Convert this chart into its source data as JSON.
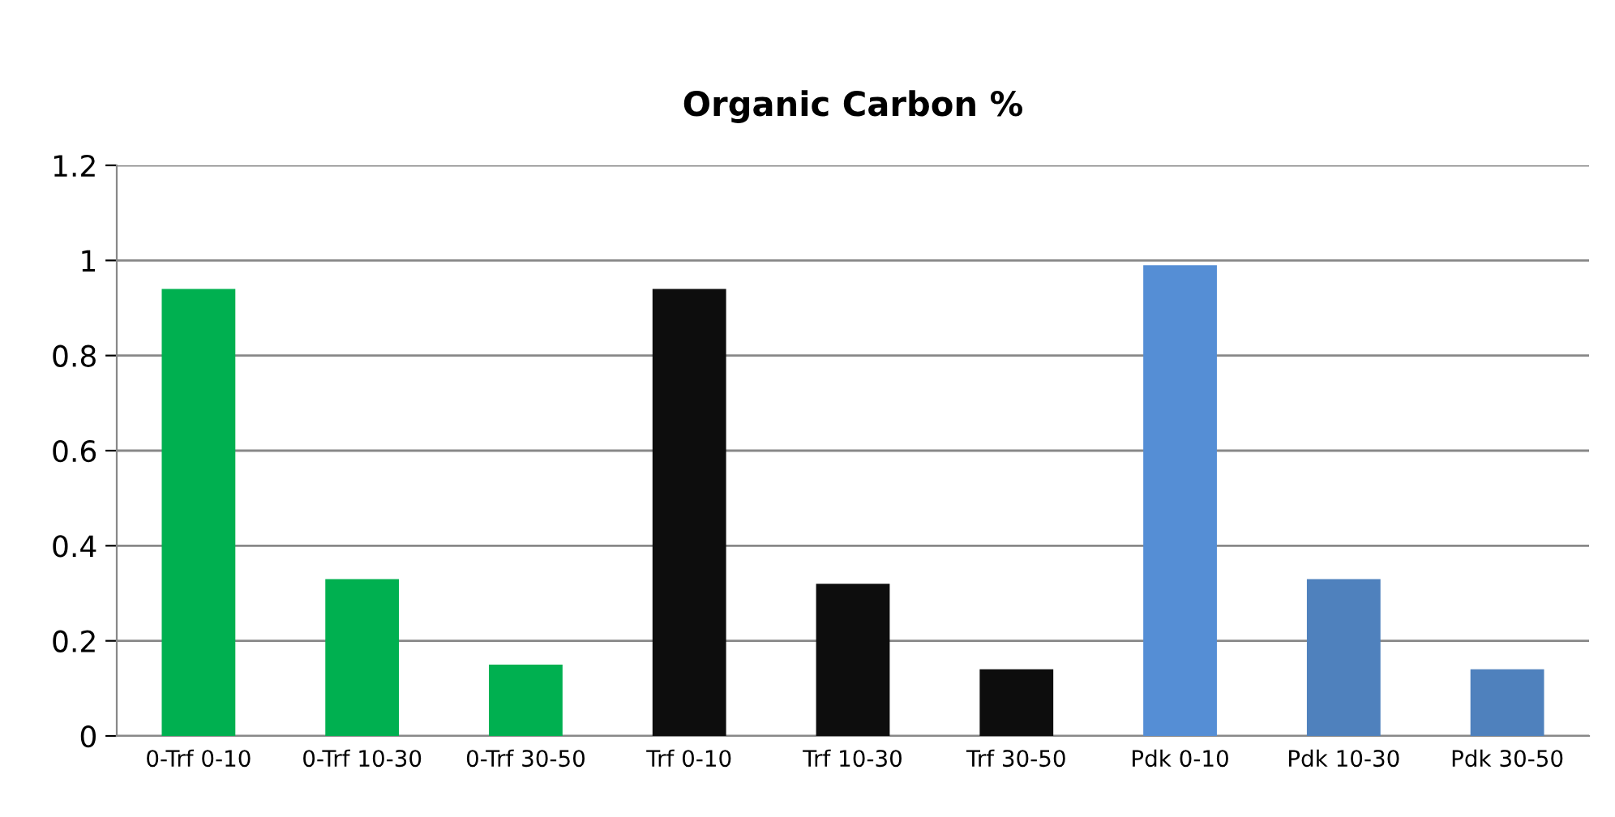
{
  "chart_data": {
    "type": "bar",
    "title": "Organic Carbon %",
    "categories": [
      "0-Trf 0-10",
      "0-Trf 10-30",
      "0-Trf 30-50",
      "Trf 0-10",
      "Trf 10-30",
      "Trf 30-50",
      "Pdk 0-10",
      "Pdk 10-30",
      "Pdk 30-50"
    ],
    "values": [
      0.94,
      0.33,
      0.15,
      0.94,
      0.32,
      0.14,
      0.99,
      0.33,
      0.14
    ],
    "colors": [
      "#00b050",
      "#00b050",
      "#00b050",
      "#0d0d0d",
      "#0d0d0d",
      "#0d0d0d",
      "#558ed5",
      "#4f81bd",
      "#4f81bd"
    ],
    "ylim": [
      0,
      1.2
    ],
    "yticks": [
      0,
      {
        "value": 0.2,
        "label": "0.2"
      },
      {
        "value": 0.4,
        "label": "0.4"
      },
      {
        "value": 0.6,
        "label": "0.6"
      },
      {
        "value": 0.8,
        "label": "0.8"
      },
      1,
      {
        "value": 1.2,
        "label": "1.2"
      }
    ],
    "grid": "y",
    "legend": false
  }
}
